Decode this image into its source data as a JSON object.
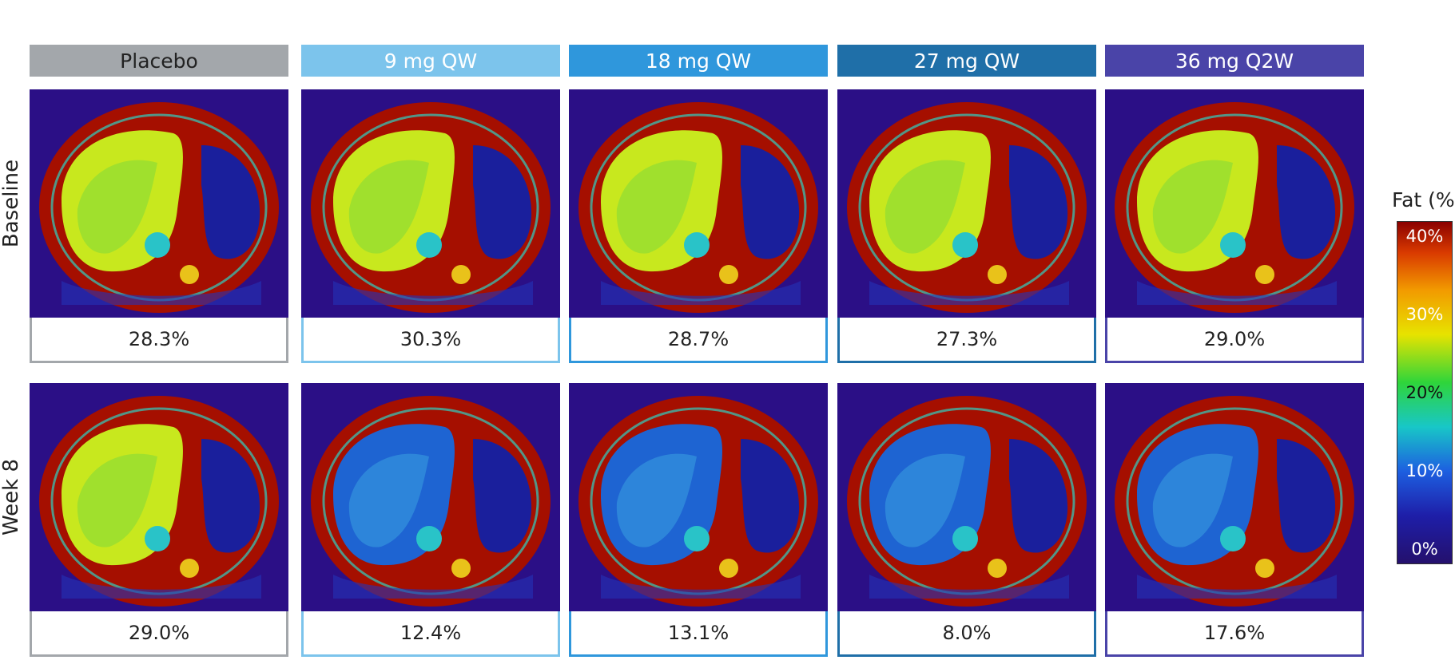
{
  "columns": [
    {
      "label": "Placebo",
      "color": "#a3a7ab",
      "text_dark": true
    },
    {
      "label": "9 mg QW",
      "color": "#7cc4ec"
    },
    {
      "label": "18 mg QW",
      "color": "#2f97dc"
    },
    {
      "label": "27 mg QW",
      "color": "#1f6fa8"
    },
    {
      "label": "36 mg Q2W",
      "color": "#4a44a8"
    }
  ],
  "rows": [
    {
      "label": "Baseline",
      "values": [
        "28.3%",
        "30.3%",
        "28.7%",
        "27.3%",
        "29.0%"
      ]
    },
    {
      "label": "Week 8",
      "values": [
        "29.0%",
        "12.4%",
        "13.1%",
        "8.0%",
        "17.6%"
      ]
    }
  ],
  "legend": {
    "title": "Fat (%)",
    "ticks": [
      "40%",
      "30%",
      "20%",
      "10%",
      "0%"
    ]
  },
  "scan_palette": {
    "background": "#2b0f86",
    "body": "#a50f00",
    "organ_high": "#c8e81e",
    "organ_low": "#1e64d2",
    "spleen": "#1a1f9c"
  }
}
